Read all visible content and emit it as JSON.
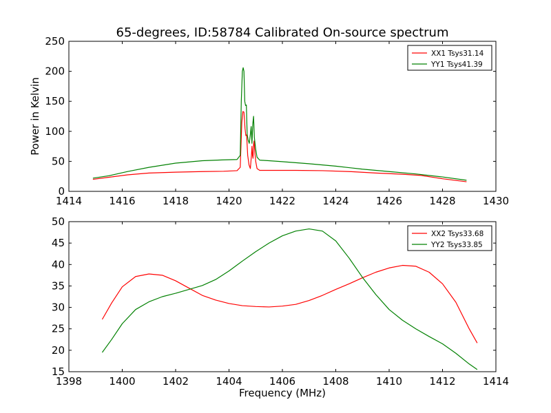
{
  "chart_data": [
    {
      "type": "line",
      "title": "65-degrees, ID:58784 Calibrated On-source spectrum",
      "xlabel": "",
      "ylabel": "Power in Kelvin",
      "xlim": [
        1414,
        1430
      ],
      "ylim": [
        0,
        250
      ],
      "x_ticks": [
        "1414",
        "1416",
        "1418",
        "1420",
        "1422",
        "1424",
        "1426",
        "1428",
        "1430"
      ],
      "y_ticks": [
        "0",
        "50",
        "100",
        "150",
        "200",
        "250"
      ],
      "grid": false,
      "legend_position": "top-right",
      "series": [
        {
          "name": "XX1 Tsys31.14",
          "color": "#ff0000",
          "points": [
            [
              1414.9,
              20
            ],
            [
              1415.5,
              23.5
            ],
            [
              1416.2,
              27.5
            ],
            [
              1417,
              30.5
            ],
            [
              1418,
              32
            ],
            [
              1419,
              33
            ],
            [
              1419.8,
              33.5
            ],
            [
              1420.3,
              34.5
            ],
            [
              1420.42,
              40
            ],
            [
              1420.48,
              115
            ],
            [
              1420.52,
              133
            ],
            [
              1420.56,
              132
            ],
            [
              1420.6,
              105
            ],
            [
              1420.63,
              93
            ],
            [
              1420.66,
              94
            ],
            [
              1420.7,
              60
            ],
            [
              1420.75,
              44
            ],
            [
              1420.8,
              38
            ],
            [
              1420.84,
              60
            ],
            [
              1420.86,
              75
            ],
            [
              1420.88,
              60
            ],
            [
              1420.9,
              55
            ],
            [
              1420.92,
              78
            ],
            [
              1420.94,
              84
            ],
            [
              1420.96,
              70
            ],
            [
              1421,
              50
            ],
            [
              1421.05,
              38
            ],
            [
              1421.15,
              35
            ],
            [
              1421.5,
              35
            ],
            [
              1422.5,
              35
            ],
            [
              1423.5,
              34.5
            ],
            [
              1424.5,
              33
            ],
            [
              1425.5,
              30.5
            ],
            [
              1426.5,
              28.5
            ],
            [
              1427.2,
              26.5
            ],
            [
              1428,
              21
            ],
            [
              1428.9,
              16
            ]
          ]
        },
        {
          "name": "YY1 Tsys41.39",
          "color": "#008000",
          "points": [
            [
              1414.9,
              22
            ],
            [
              1415.5,
              26
            ],
            [
              1416.2,
              33
            ],
            [
              1417,
              40
            ],
            [
              1418,
              47
            ],
            [
              1419,
              51
            ],
            [
              1419.8,
              52.5
            ],
            [
              1420.3,
              53
            ],
            [
              1420.42,
              60
            ],
            [
              1420.46,
              150
            ],
            [
              1420.5,
              200
            ],
            [
              1420.53,
              206
            ],
            [
              1420.56,
              200
            ],
            [
              1420.59,
              150
            ],
            [
              1420.62,
              143
            ],
            [
              1420.65,
              144
            ],
            [
              1420.68,
              95
            ],
            [
              1420.72,
              85
            ],
            [
              1420.76,
              80
            ],
            [
              1420.8,
              95
            ],
            [
              1420.83,
              108
            ],
            [
              1420.86,
              80
            ],
            [
              1420.89,
              112
            ],
            [
              1420.92,
              125
            ],
            [
              1420.95,
              90
            ],
            [
              1421,
              70
            ],
            [
              1421.05,
              57
            ],
            [
              1421.15,
              52
            ],
            [
              1421.5,
              51
            ],
            [
              1422,
              49.5
            ],
            [
              1423,
              46
            ],
            [
              1424,
              42
            ],
            [
              1425,
              37
            ],
            [
              1426,
              33
            ],
            [
              1427,
              29
            ],
            [
              1428,
              24
            ],
            [
              1428.9,
              18.5
            ]
          ]
        }
      ]
    },
    {
      "type": "line",
      "title": "",
      "xlabel": "Frequency (MHz)",
      "ylabel": "",
      "xlim": [
        1398,
        1414
      ],
      "ylim": [
        15,
        50
      ],
      "x_ticks": [
        "1398",
        "1400",
        "1402",
        "1404",
        "1406",
        "1408",
        "1410",
        "1412",
        "1414"
      ],
      "y_ticks": [
        "15",
        "20",
        "25",
        "30",
        "35",
        "40",
        "45",
        "50"
      ],
      "grid": false,
      "legend_position": "top-right",
      "series": [
        {
          "name": "XX2 Tsys33.68",
          "color": "#ff0000",
          "points": [
            [
              1399.25,
              27.2
            ],
            [
              1399.6,
              31
            ],
            [
              1400,
              34.8
            ],
            [
              1400.5,
              37.2
            ],
            [
              1401,
              37.8
            ],
            [
              1401.5,
              37.5
            ],
            [
              1402,
              36.2
            ],
            [
              1402.5,
              34.5
            ],
            [
              1403,
              32.8
            ],
            [
              1403.5,
              31.7
            ],
            [
              1404,
              30.9
            ],
            [
              1404.5,
              30.4
            ],
            [
              1405,
              30.2
            ],
            [
              1405.5,
              30.1
            ],
            [
              1406,
              30.3
            ],
            [
              1406.5,
              30.7
            ],
            [
              1407,
              31.6
            ],
            [
              1407.5,
              32.8
            ],
            [
              1408,
              34.2
            ],
            [
              1408.5,
              35.5
            ],
            [
              1409,
              36.9
            ],
            [
              1409.5,
              38.2
            ],
            [
              1410,
              39.2
            ],
            [
              1410.5,
              39.8
            ],
            [
              1411,
              39.6
            ],
            [
              1411.5,
              38.2
            ],
            [
              1412,
              35.5
            ],
            [
              1412.5,
              31.2
            ],
            [
              1413,
              25
            ],
            [
              1413.3,
              21.7
            ]
          ]
        },
        {
          "name": "YY2 Tsys33.85",
          "color": "#008000",
          "points": [
            [
              1399.25,
              19.5
            ],
            [
              1399.6,
              22.5
            ],
            [
              1400,
              26.2
            ],
            [
              1400.5,
              29.5
            ],
            [
              1401,
              31.3
            ],
            [
              1401.5,
              32.5
            ],
            [
              1402,
              33.3
            ],
            [
              1402.5,
              34.2
            ],
            [
              1403,
              35.1
            ],
            [
              1403.5,
              36.5
            ],
            [
              1404,
              38.5
            ],
            [
              1404.5,
              40.8
            ],
            [
              1405,
              43
            ],
            [
              1405.5,
              45
            ],
            [
              1406,
              46.7
            ],
            [
              1406.5,
              47.8
            ],
            [
              1407,
              48.3
            ],
            [
              1407.5,
              47.8
            ],
            [
              1408,
              45.5
            ],
            [
              1408.5,
              41.5
            ],
            [
              1409,
              37
            ],
            [
              1409.5,
              33
            ],
            [
              1410,
              29.5
            ],
            [
              1410.5,
              27
            ],
            [
              1411,
              25
            ],
            [
              1411.5,
              23.2
            ],
            [
              1412,
              21.5
            ],
            [
              1412.5,
              19.3
            ],
            [
              1413,
              16.8
            ],
            [
              1413.3,
              15.5
            ]
          ]
        }
      ]
    }
  ]
}
